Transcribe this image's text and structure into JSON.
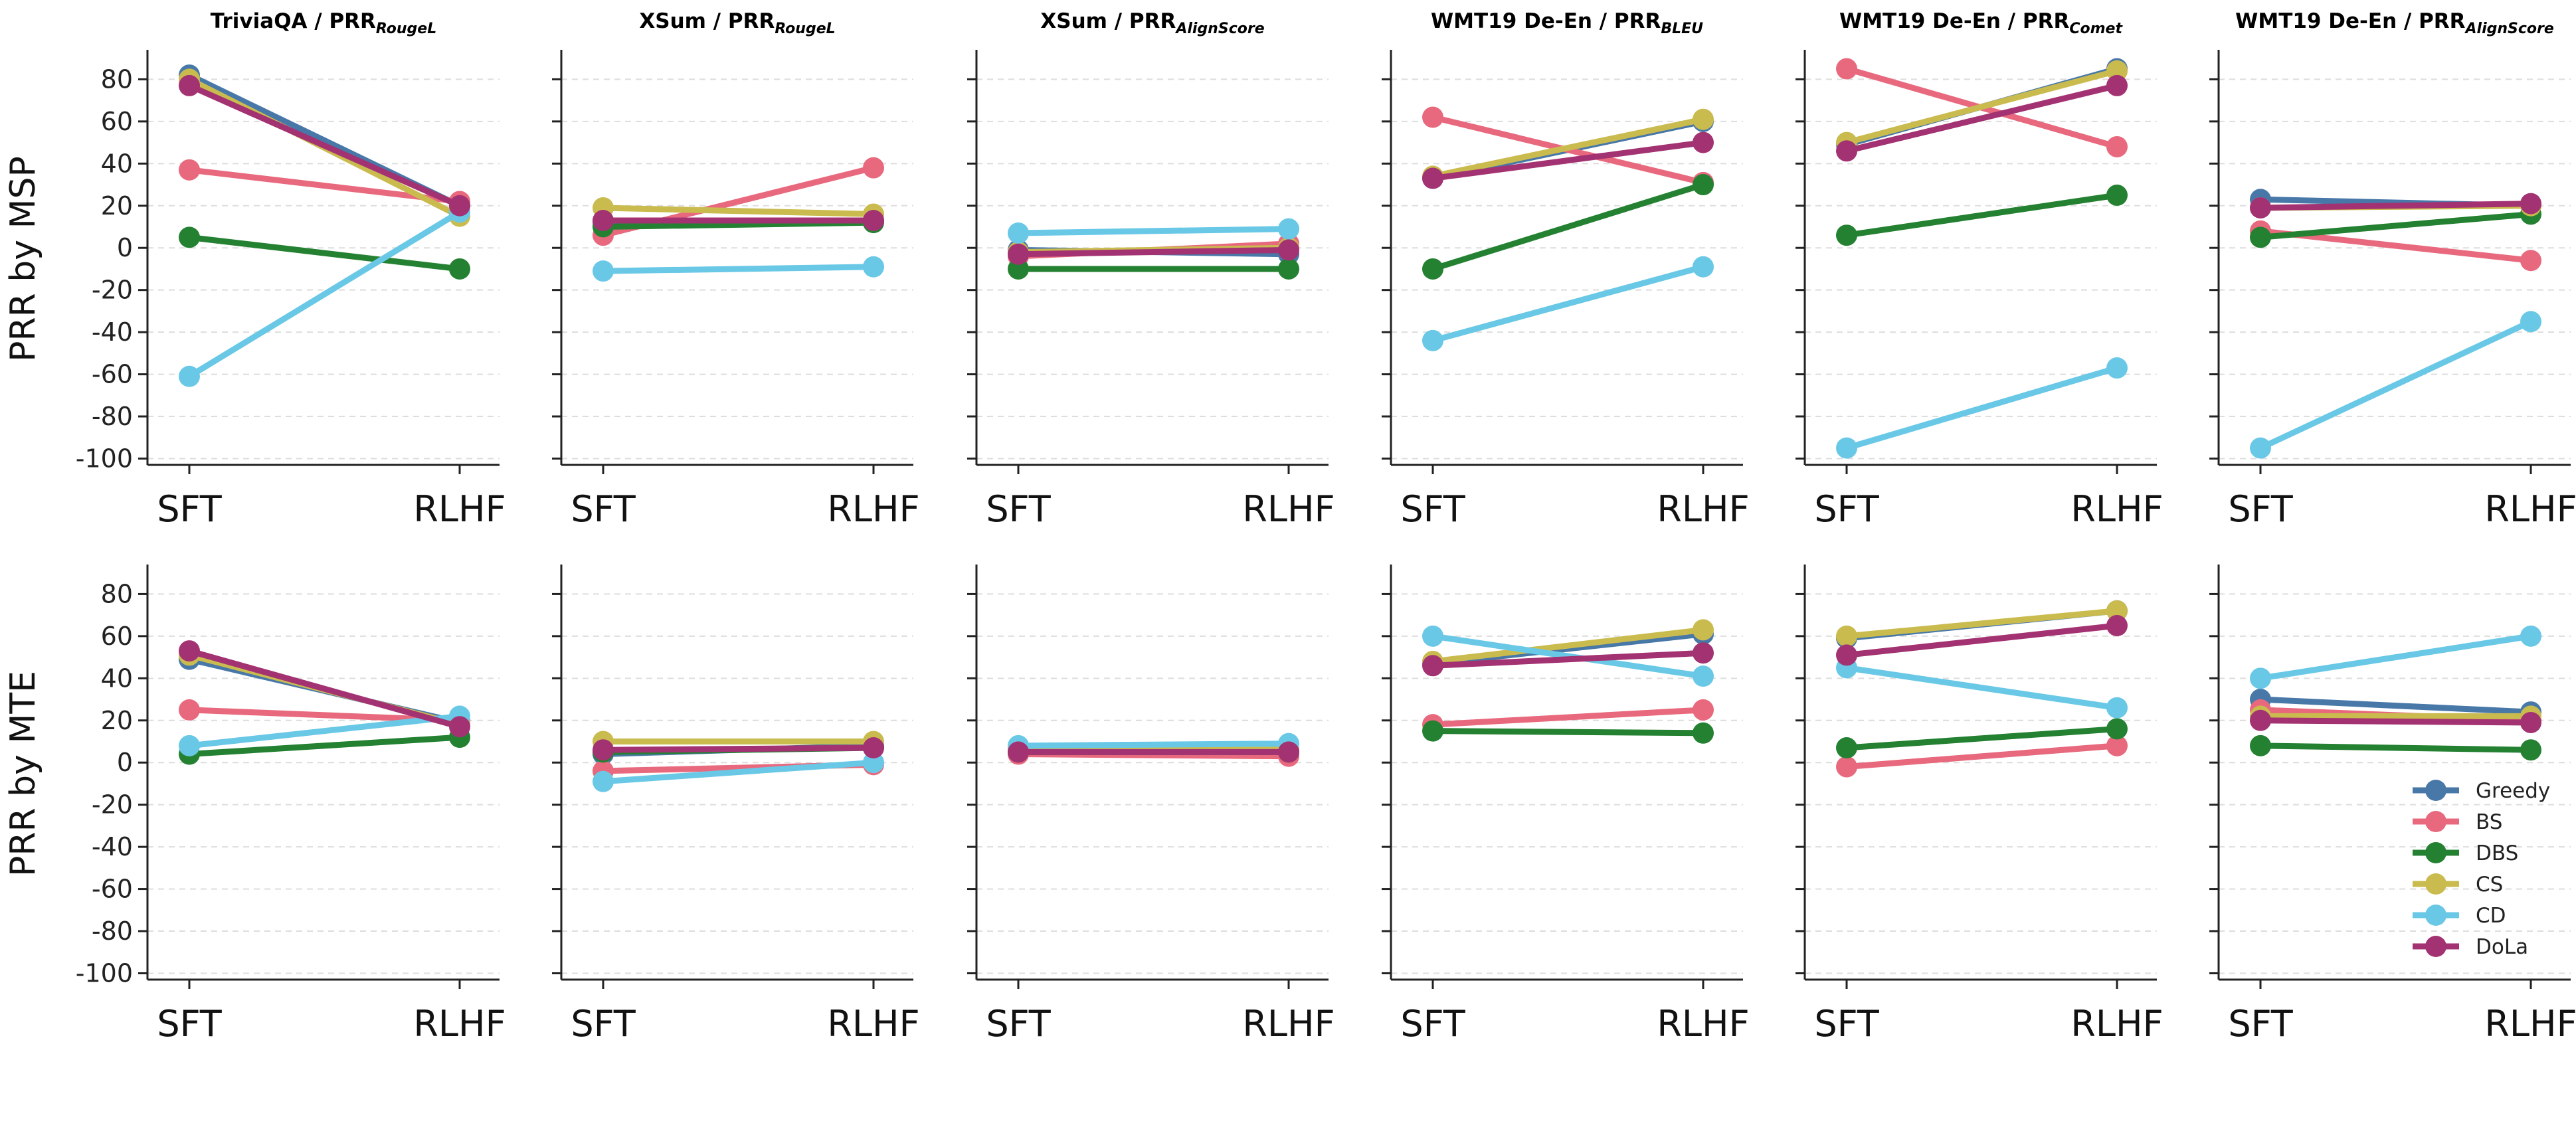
{
  "chart_data": {
    "type": "line",
    "x_categories": [
      "SFT",
      "RLHF"
    ],
    "y_ticks": [
      80,
      60,
      40,
      20,
      0,
      -20,
      -40,
      -60,
      -80,
      -100
    ],
    "ylim": [
      -103,
      94
    ],
    "grid": true,
    "row_labels": [
      "PRR by MSP",
      "PRR by MTE"
    ],
    "columns": [
      {
        "main": "TriviaQA / PRR",
        "sub": "RougeL"
      },
      {
        "main": "XSum / PRR",
        "sub": "RougeL"
      },
      {
        "main": "XSum / PRR",
        "sub": "AlignScore"
      },
      {
        "main": "WMT19 De-En / PRR",
        "sub": "BLEU"
      },
      {
        "main": "WMT19 De-En / PRR",
        "sub": "Comet"
      },
      {
        "main": "WMT19 De-En / PRR",
        "sub": "AlignScore"
      }
    ],
    "series": [
      {
        "name": "Greedy",
        "color": "#4878a8"
      },
      {
        "name": "BS",
        "color": "#e8697d"
      },
      {
        "name": "DBS",
        "color": "#258132"
      },
      {
        "name": "CS",
        "color": "#cabb4f"
      },
      {
        "name": "CD",
        "color": "#69c8e6"
      },
      {
        "name": "DoLa",
        "color": "#a33272"
      }
    ],
    "legend_position": "lower-right of last panel",
    "panels": [
      [
        {
          "Greedy": [
            82,
            20
          ],
          "BS": [
            37,
            22
          ],
          "DBS": [
            5,
            -10
          ],
          "CS": [
            80,
            15
          ],
          "CD": [
            -61,
            17
          ],
          "DoLa": [
            77,
            20
          ]
        },
        {
          "Greedy": [
            12,
            13
          ],
          "BS": [
            6,
            38
          ],
          "DBS": [
            10,
            12
          ],
          "CS": [
            19,
            16
          ],
          "CD": [
            -11,
            -9
          ],
          "DoLa": [
            13,
            13
          ]
        },
        {
          "Greedy": [
            -1,
            -3
          ],
          "BS": [
            -4,
            2
          ],
          "DBS": [
            -10,
            -10
          ],
          "CS": [
            -2,
            0
          ],
          "CD": [
            7,
            9
          ],
          "DoLa": [
            -3,
            -1
          ]
        },
        {
          "Greedy": [
            33,
            60
          ],
          "BS": [
            62,
            31
          ],
          "DBS": [
            -10,
            30
          ],
          "CS": [
            34,
            61
          ],
          "CD": [
            -44,
            -9
          ],
          "DoLa": [
            33,
            50
          ]
        },
        {
          "Greedy": [
            49,
            85
          ],
          "BS": [
            85,
            48
          ],
          "DBS": [
            6,
            25
          ],
          "CS": [
            50,
            84
          ],
          "CD": [
            -95,
            -57
          ],
          "DoLa": [
            46,
            77
          ]
        },
        {
          "Greedy": [
            23,
            20
          ],
          "BS": [
            8,
            -6
          ],
          "DBS": [
            5,
            16
          ],
          "CS": [
            19,
            20
          ],
          "CD": [
            -95,
            -35
          ],
          "DoLa": [
            19,
            21
          ]
        }
      ],
      [
        {
          "Greedy": [
            49,
            19
          ],
          "BS": [
            25,
            20
          ],
          "DBS": [
            4,
            12
          ],
          "CS": [
            51,
            18
          ],
          "CD": [
            8,
            22
          ],
          "DoLa": [
            53,
            17
          ]
        },
        {
          "Greedy": [
            4,
            8
          ],
          "BS": [
            -4,
            -1
          ],
          "DBS": [
            5,
            7
          ],
          "CS": [
            10,
            10
          ],
          "CD": [
            -9,
            0
          ],
          "DoLa": [
            6,
            7
          ]
        },
        {
          "Greedy": [
            6,
            6
          ],
          "BS": [
            4,
            3
          ],
          "DBS": [
            5,
            5
          ],
          "CS": [
            7,
            7
          ],
          "CD": [
            8,
            9
          ],
          "DoLa": [
            5,
            5
          ]
        },
        {
          "Greedy": [
            47,
            61
          ],
          "BS": [
            18,
            25
          ],
          "DBS": [
            15,
            14
          ],
          "CS": [
            48,
            63
          ],
          "CD": [
            60,
            41
          ],
          "DoLa": [
            46,
            52
          ]
        },
        {
          "Greedy": [
            59,
            72
          ],
          "BS": [
            -2,
            8
          ],
          "DBS": [
            7,
            16
          ],
          "CS": [
            60,
            72
          ],
          "CD": [
            45,
            26
          ],
          "DoLa": [
            51,
            65
          ]
        },
        {
          "Greedy": [
            30,
            24
          ],
          "BS": [
            25,
            20
          ],
          "DBS": [
            8,
            6
          ],
          "CS": [
            22,
            22
          ],
          "CD": [
            40,
            60
          ],
          "DoLa": [
            20,
            19
          ]
        }
      ]
    ]
  }
}
